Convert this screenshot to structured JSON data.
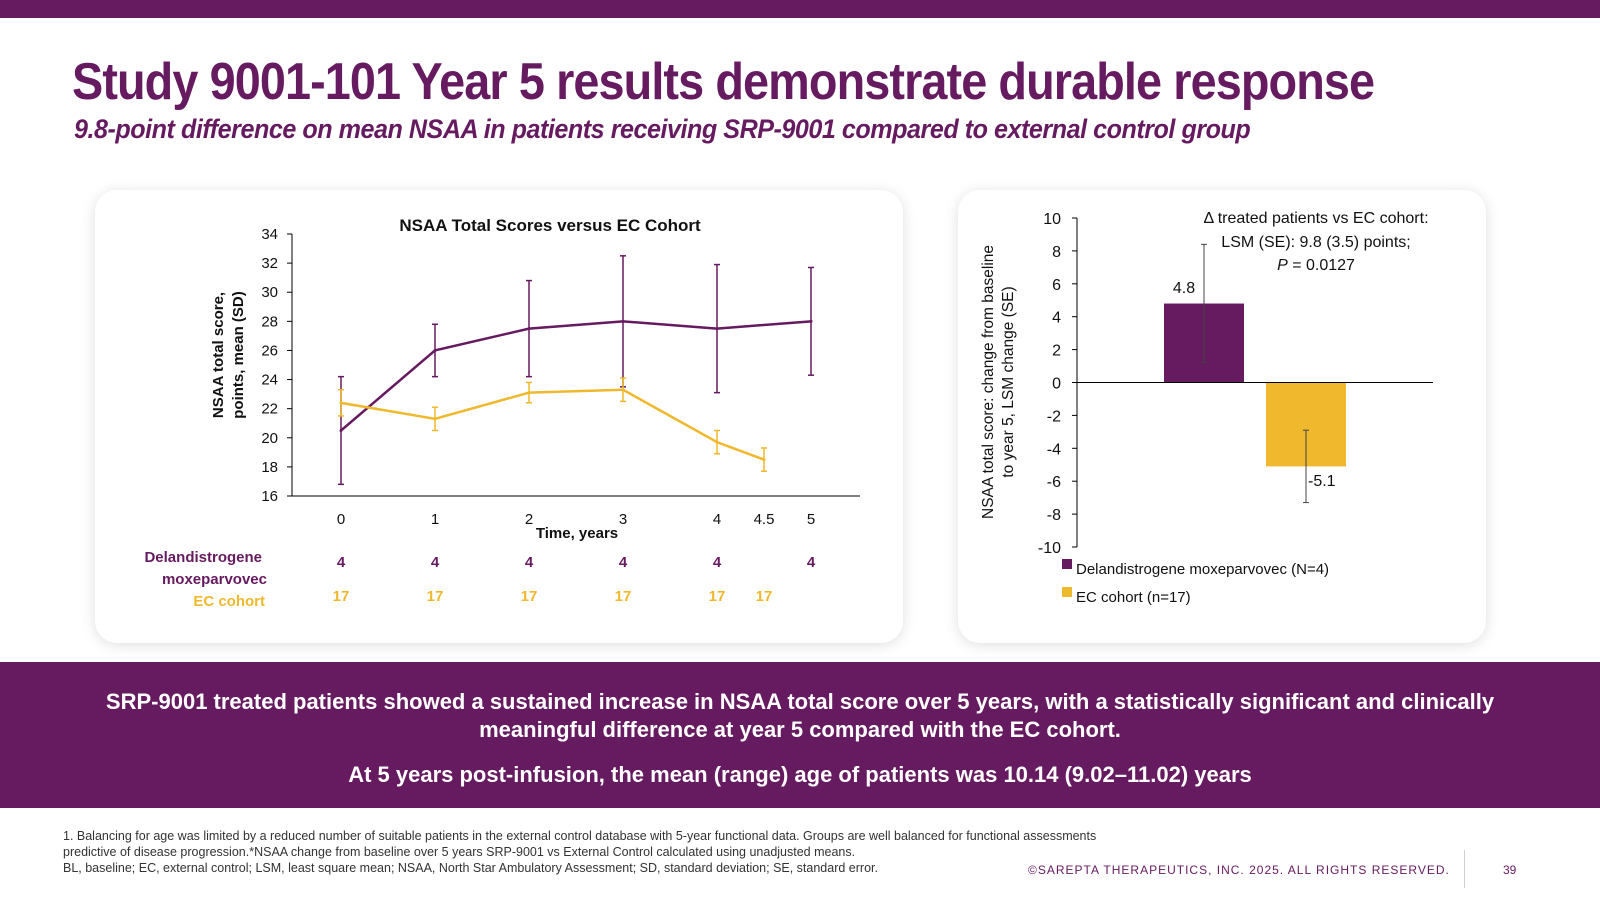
{
  "slide": {
    "title": "Study 9001-101 Year 5 results demonstrate durable response",
    "subtitle": "9.8-point difference on mean NSAA in patients receiving SRP-9001 compared to external control group",
    "brand_color": "#661a5f",
    "accent_color": "#f0b82d"
  },
  "left_chart": {
    "title": "NSAA Total Scores versus EC Cohort",
    "ylabel_line1": "NSAA total score,",
    "ylabel_line2": "points, mean (SD)",
    "xlabel": "Time, years",
    "n_table": {
      "row1_label_line1": "Delandistrogene",
      "row1_label_line2": "moxeparvovec",
      "row2_label": "EC cohort",
      "row1_values": [
        "4",
        "4",
        "4",
        "4",
        "4",
        "4"
      ],
      "row1_x": [
        0,
        1,
        2,
        3,
        4,
        5
      ],
      "row2_values": [
        "17",
        "17",
        "17",
        "17",
        "17",
        "17"
      ],
      "row2_x": [
        0,
        1,
        2,
        3,
        4,
        4.5
      ]
    }
  },
  "right_chart": {
    "ylabel_line1": "NSAA total score: change from baseline",
    "ylabel_line2": "to year 5, LSM change (SE)",
    "annotation_line1": "Δ treated patients vs EC cohort:",
    "annotation_line2": "LSM (SE): 9.8 (3.5) points;",
    "annotation_line3_p": "P",
    "annotation_line3_rest": " = 0.0127",
    "legend": [
      "Delandistrogene moxeparvovec (N=4)",
      "EC cohort (n=17)"
    ]
  },
  "chart_data": [
    {
      "type": "line",
      "title": "NSAA Total Scores versus EC Cohort",
      "xlabel": "Time, years",
      "ylabel": "NSAA total score, points, mean (SD)",
      "ylim": [
        16,
        34
      ],
      "yticks": [
        16,
        18,
        20,
        22,
        24,
        26,
        28,
        30,
        32,
        34
      ],
      "xticks": [
        "0",
        "1",
        "2",
        "3",
        "4",
        "4.5",
        "5"
      ],
      "xtick_values": [
        0,
        1,
        2,
        3,
        4,
        4.5,
        5
      ],
      "series": [
        {
          "color": "#661a5f",
          "x": [
            0,
            1,
            2,
            3,
            4,
            5
          ],
          "y": [
            20.5,
            26.0,
            27.5,
            28.0,
            27.5,
            28.0
          ],
          "err_low": [
            16.8,
            24.2,
            24.2,
            23.5,
            23.1,
            24.3
          ],
          "err_high": [
            24.2,
            27.8,
            30.8,
            32.5,
            31.9,
            31.7
          ]
        },
        {
          "color": "#f0b82d",
          "x": [
            0,
            1,
            2,
            3,
            4,
            4.5
          ],
          "y": [
            22.4,
            21.3,
            23.1,
            23.3,
            19.7,
            18.5
          ],
          "err_low": [
            21.5,
            20.5,
            22.4,
            22.5,
            18.9,
            17.7
          ],
          "err_high": [
            23.3,
            22.1,
            23.8,
            24.1,
            20.5,
            19.3
          ]
        }
      ]
    },
    {
      "type": "bar",
      "ylabel": "NSAA total score: change from baseline to year 5, LSM change (SE)",
      "ylim": [
        -10,
        10
      ],
      "yticks": [
        -10,
        -8,
        -6,
        -4,
        -2,
        0,
        2,
        4,
        6,
        8,
        10
      ],
      "categories": [
        "Delandistrogene moxeparvovec (N=4)",
        "EC cohort (n=17)"
      ],
      "values": [
        4.8,
        -5.1
      ],
      "labels": [
        "4.8",
        "-5.1"
      ],
      "err_low": [
        1.2,
        -7.3
      ],
      "err_high": [
        8.4,
        -2.9
      ],
      "colors": [
        "#661a5f",
        "#f0b82d"
      ]
    }
  ],
  "banner": {
    "line1": "SRP-9001 treated patients showed a sustained increase in NSAA total score over 5 years, with a statistically significant and clinically meaningful difference at year 5 compared with the EC cohort.",
    "line2": "At 5 years post-infusion, the mean (range) age of patients was 10.14 (9.02–11.02) years"
  },
  "footnotes": {
    "line1": "1. Balancing for age was limited by a reduced number of suitable patients in the external control database with 5-year functional data. Groups are well balanced for functional assessments predictive of disease progression.*NSAA change from baseline over 5 years SRP-9001 vs External Control calculated using unadjusted means.",
    "line2": "BL, baseline; EC, external control; LSM, least square mean; NSAA, North Star Ambulatory Assessment; SD, standard deviation; SE, standard error."
  },
  "copyright": "©SAREPTA THERAPEUTICS, INC. 2025.  ALL RIGHTS RESERVED.",
  "page_number": "39"
}
